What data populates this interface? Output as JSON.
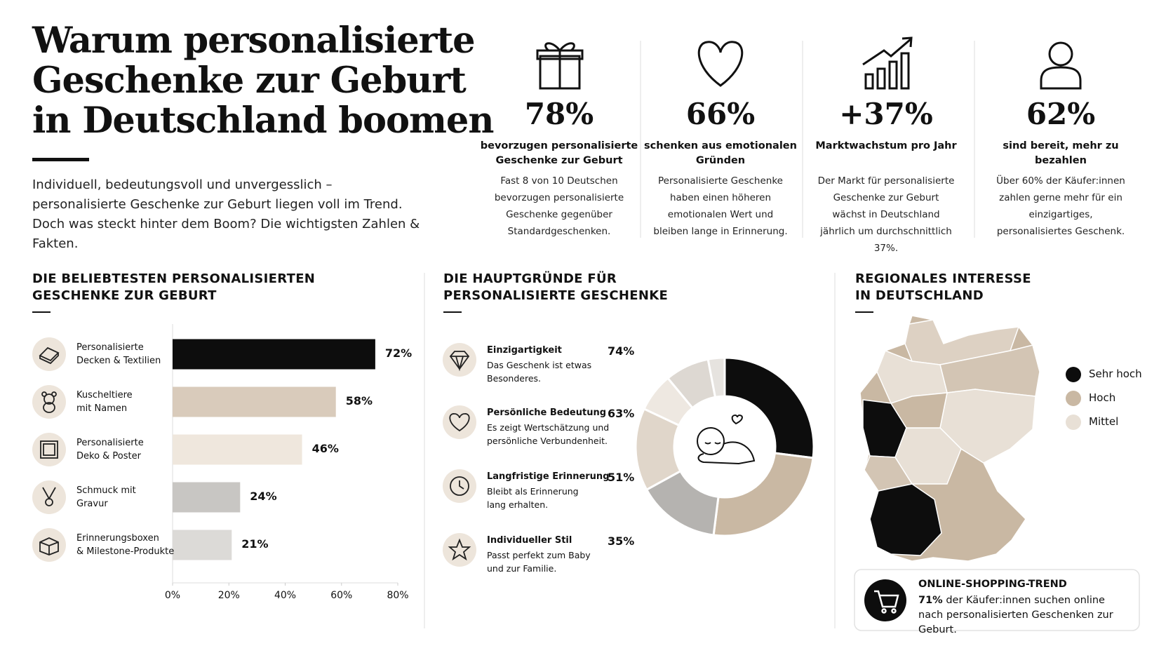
{
  "header": {
    "title": "Warum personalisierte\nGeschenke zur Geburt\nin Deutschland boomen",
    "intro": "Individuell, bedeutungsvoll und unvergesslich – personalisierte Geschenke zur Geburt liegen voll im Trend. Doch was steckt hinter dem Boom? Die wichtigsten Zahlen & Fakten."
  },
  "stats": [
    {
      "value": "78%",
      "label": "bevorzugen personalisierte\nGeschenke zur Geburt",
      "description": "Fast 8 von 10 Deutschen bevorzugen personalisierte Geschenke gegenüber Standardgeschenken."
    },
    {
      "value": "66%",
      "label": "schenken aus emotionalen\nGründen",
      "description": "Personalisierte Geschenke haben einen höheren emotionalen Wert und bleiben lange in Erinnerung."
    },
    {
      "value": "+37%",
      "label": "Marktwachstum pro Jahr",
      "description": "Der Markt für personalisierte Geschenke zur Geburt wächst in Deutschland jährlich um durchschnittlich 37%."
    },
    {
      "value": "62%",
      "label": "sind bereit, mehr zu bezahlen",
      "description": "Über 60% der Käufer:innen zahlen gerne mehr für ein einzigartiges, personalisiertes Geschenk."
    }
  ],
  "chart_data": [
    {
      "type": "bar",
      "orientation": "horizontal",
      "title": "DIE BELIEBTESTEN PERSONALISIERTEN\nGESCHENKE ZUR GEBURT",
      "categories": [
        "Personalisierte\nDecken & Textilien",
        "Kuscheltiere\nmit Namen",
        "Personalisierte\nDeko & Poster",
        "Schmuck mit\nGravur",
        "Erinnerungsboxen\n& Milestone-Produkte"
      ],
      "values": [
        72,
        58,
        46,
        24,
        21
      ],
      "value_labels": [
        "72%",
        "58%",
        "46%",
        "24%",
        "21%"
      ],
      "colors": [
        "#0d0d0d",
        "#d9cbbb",
        "#efe7dd",
        "#c8c6c3",
        "#dcdad7"
      ],
      "xlim": [
        0,
        80
      ],
      "xticks": [
        {
          "value": 0,
          "label": "0%"
        },
        {
          "value": 20,
          "label": "20%"
        },
        {
          "value": 40,
          "label": "40%"
        },
        {
          "value": 60,
          "label": "60%"
        },
        {
          "value": 80,
          "label": "80%"
        }
      ]
    },
    {
      "type": "pie",
      "donut": true,
      "title": "DIE HAUPTGRÜNDE FÜR\nPERSONALISIERTE GESCHENKE",
      "values": [
        27,
        25,
        15,
        15,
        7,
        8,
        3
      ],
      "colors": [
        "#0d0d0d",
        "#c9b8a3",
        "#b5b3b0",
        "#e0d6ca",
        "#eee8e1",
        "#ddd8d2",
        "#e6e3df"
      ]
    }
  ],
  "reasons": [
    {
      "title": "Einzigartigkeit",
      "description": "Das Geschenk ist etwas\nBesonderes.",
      "percent": "74%"
    },
    {
      "title": "Persönliche Bedeutung",
      "description": "Es zeigt Wertschätzung und\npersönliche Verbundenheit.",
      "percent": "63%"
    },
    {
      "title": "Langfristige Erinnerung",
      "description": "Bleibt als Erinnerung\nlang erhalten.",
      "percent": "51%"
    },
    {
      "title": "Individueller Stil",
      "description": "Passt perfekt zum Baby\nund zur Familie.",
      "percent": "35%"
    }
  ],
  "map": {
    "title": "REGIONALES INTERESSE\nIN DEUTSCHLAND",
    "legend": [
      {
        "name": "Sehr hoch",
        "color": "#0d0d0d"
      },
      {
        "name": "Hoch",
        "color": "#c9b8a3"
      },
      {
        "name": "Mittel",
        "color": "#e8e0d6"
      }
    ]
  },
  "online": {
    "title": "ONLINE-SHOPPING-TREND",
    "highlight": "71%",
    "text": "der Käufer:innen suchen online nach personalisierten Geschenken zur Geburt."
  }
}
